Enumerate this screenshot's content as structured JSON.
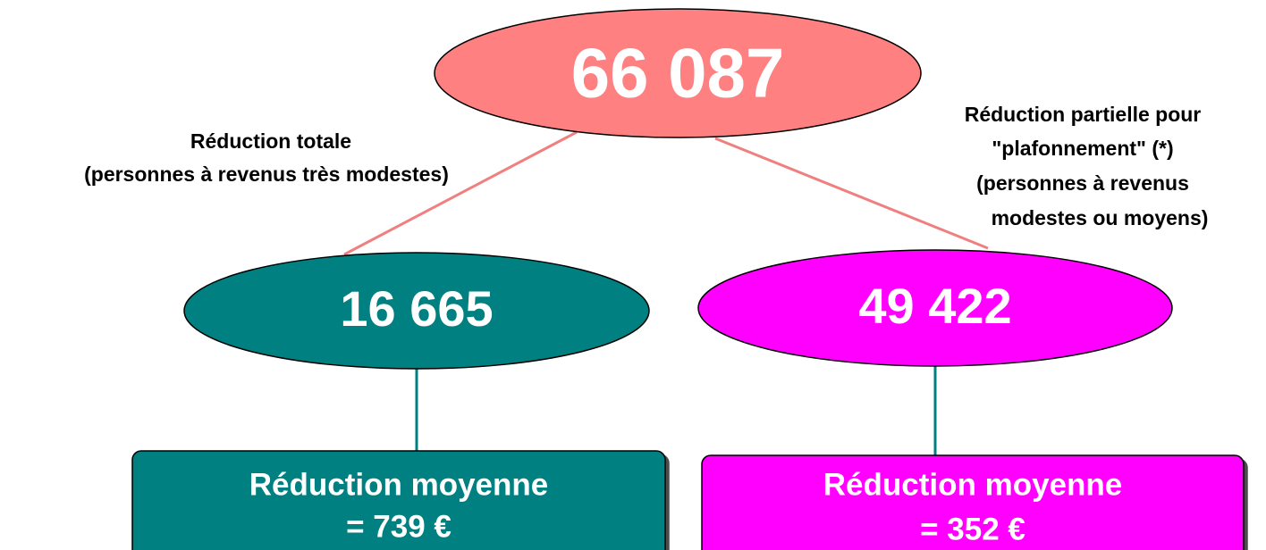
{
  "root": {
    "label": "66 087"
  },
  "branches": [
    {
      "edge_label": [
        "Réduction totale",
        "(personnes à revenus très modestes)"
      ],
      "label": "16 665",
      "result": [
        "Réduction moyenne",
        "= 739 €"
      ]
    },
    {
      "edge_label": [
        "Réduction partielle pour",
        "\"plafonnement\" (*)",
        "(personnes à revenus",
        "modestes ou moyens)"
      ],
      "label": "49 422",
      "result": [
        "Réduction moyenne",
        "= 352 €"
      ]
    }
  ]
}
